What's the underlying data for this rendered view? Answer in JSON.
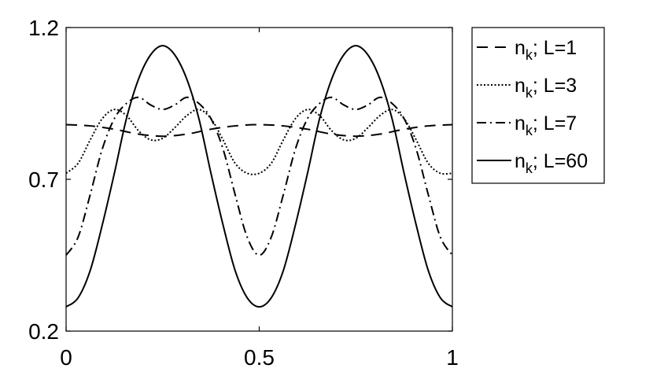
{
  "chart_data": {
    "type": "line",
    "title": "",
    "xlabel": "",
    "ylabel": "",
    "xlim": [
      0,
      1
    ],
    "ylim": [
      0.2,
      1.2
    ],
    "xticks": [
      "0",
      "0.5",
      "1"
    ],
    "yticks": [
      "0.2",
      "0.7",
      "1.2"
    ],
    "xtick_values": [
      0,
      0.5,
      1
    ],
    "ytick_values": [
      0.2,
      0.7,
      1.2
    ],
    "grid": false,
    "legend_position": "outside-right",
    "series": [
      {
        "name": "n_k; L=1",
        "legend_main": "n",
        "legend_sub": "k",
        "legend_rest": "; L=1",
        "style": "dashed",
        "x": [
          0,
          0.0625,
          0.125,
          0.1875,
          0.25,
          0.3125,
          0.375,
          0.4375,
          0.5,
          0.5625,
          0.625,
          0.6875,
          0.75,
          0.8125,
          0.875,
          0.9375,
          1
        ],
        "y": [
          0.88,
          0.876,
          0.865,
          0.849,
          0.842,
          0.849,
          0.865,
          0.876,
          0.88,
          0.876,
          0.865,
          0.849,
          0.842,
          0.849,
          0.865,
          0.876,
          0.88
        ]
      },
      {
        "name": "n_k; L=3",
        "legend_main": "n",
        "legend_sub": "k",
        "legend_rest": "; L=3",
        "style": "dotted",
        "x": [
          0,
          0.03125,
          0.0625,
          0.09375,
          0.125,
          0.15625,
          0.1875,
          0.21875,
          0.25,
          0.28125,
          0.3125,
          0.34375,
          0.375,
          0.40625,
          0.4375,
          0.46875,
          0.5,
          0.53125,
          0.5625,
          0.59375,
          0.625,
          0.65625,
          0.6875,
          0.71875,
          0.75,
          0.78125,
          0.8125,
          0.84375,
          0.875,
          0.90625,
          0.9375,
          0.96875,
          1
        ],
        "y": [
          0.72,
          0.753,
          0.83,
          0.9,
          0.93,
          0.91,
          0.86,
          0.83,
          0.835,
          0.87,
          0.91,
          0.93,
          0.9,
          0.83,
          0.753,
          0.72,
          0.72,
          0.753,
          0.83,
          0.9,
          0.93,
          0.91,
          0.86,
          0.83,
          0.835,
          0.87,
          0.91,
          0.93,
          0.9,
          0.83,
          0.753,
          0.72,
          0.72
        ]
      },
      {
        "name": "n_k; L=7",
        "legend_main": "n",
        "legend_sub": "k",
        "legend_rest": "; L=7",
        "style": "dashdot",
        "x": [
          0,
          0.03125,
          0.0625,
          0.09375,
          0.125,
          0.15625,
          0.1875,
          0.21875,
          0.25,
          0.28125,
          0.3125,
          0.34375,
          0.375,
          0.40625,
          0.4375,
          0.46875,
          0.5,
          0.53125,
          0.5625,
          0.59375,
          0.625,
          0.65625,
          0.6875,
          0.71875,
          0.75,
          0.78125,
          0.8125,
          0.84375,
          0.875,
          0.90625,
          0.9375,
          0.96875,
          1
        ],
        "y": [
          0.45,
          0.51,
          0.65,
          0.8,
          0.9,
          0.95,
          0.97,
          0.945,
          0.93,
          0.945,
          0.97,
          0.95,
          0.9,
          0.8,
          0.65,
          0.51,
          0.45,
          0.51,
          0.65,
          0.8,
          0.9,
          0.95,
          0.97,
          0.945,
          0.93,
          0.945,
          0.97,
          0.95,
          0.9,
          0.8,
          0.65,
          0.51,
          0.45
        ]
      },
      {
        "name": "n_k; L=60",
        "legend_main": "n",
        "legend_sub": "k",
        "legend_rest": "; L=60",
        "style": "solid",
        "x": [
          0,
          0.03125,
          0.0625,
          0.09375,
          0.125,
          0.15625,
          0.1875,
          0.21875,
          0.25,
          0.28125,
          0.3125,
          0.34375,
          0.375,
          0.40625,
          0.4375,
          0.46875,
          0.5,
          0.53125,
          0.5625,
          0.59375,
          0.625,
          0.65625,
          0.6875,
          0.71875,
          0.75,
          0.78125,
          0.8125,
          0.84375,
          0.875,
          0.90625,
          0.9375,
          0.96875,
          1
        ],
        "y": [
          0.28,
          0.31,
          0.4,
          0.55,
          0.72,
          0.9,
          1.03,
          1.11,
          1.14,
          1.11,
          1.03,
          0.9,
          0.72,
          0.55,
          0.4,
          0.31,
          0.28,
          0.31,
          0.4,
          0.55,
          0.72,
          0.9,
          1.03,
          1.11,
          1.14,
          1.11,
          1.03,
          0.9,
          0.72,
          0.55,
          0.4,
          0.31,
          0.28
        ]
      }
    ]
  }
}
